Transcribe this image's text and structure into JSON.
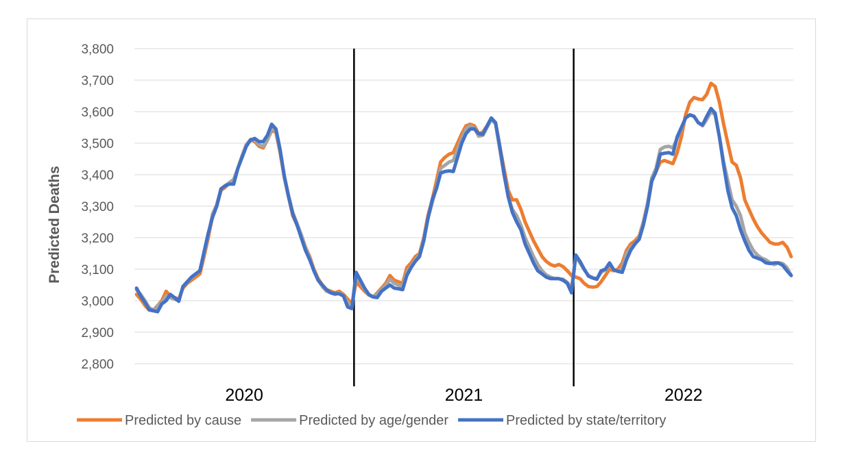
{
  "chart_data": {
    "type": "line",
    "title": "",
    "xlabel": "",
    "ylabel": "Predicted Deaths",
    "ylim": [
      2800,
      3800
    ],
    "y_ticks": [
      "2,800",
      "2,900",
      "3,000",
      "3,100",
      "3,200",
      "3,300",
      "3,400",
      "3,500",
      "3,600",
      "3,700",
      "3,800"
    ],
    "y_tick_values": [
      2800,
      2900,
      3000,
      3100,
      3200,
      3300,
      3400,
      3500,
      3600,
      3700,
      3800
    ],
    "grid": "horizontal",
    "legend_position": "bottom",
    "x_unit": "week",
    "years": [
      {
        "label": "2020",
        "weeks": 52
      },
      {
        "label": "2021",
        "weeks": 52
      },
      {
        "label": "2022",
        "weeks": 52
      }
    ],
    "series": [
      {
        "name": "Predicted by cause",
        "color": "#ED7D31",
        "values": [
          3020,
          3005,
          2985,
          2970,
          2968,
          2985,
          3000,
          3030,
          3015,
          3010,
          3005,
          3040,
          3055,
          3065,
          3075,
          3085,
          3140,
          3200,
          3270,
          3300,
          3350,
          3360,
          3375,
          3380,
          3420,
          3460,
          3495,
          3510,
          3505,
          3490,
          3485,
          3510,
          3540,
          3535,
          3470,
          3390,
          3330,
          3270,
          3240,
          3210,
          3170,
          3140,
          3100,
          3070,
          3050,
          3035,
          3030,
          3025,
          3030,
          3020,
          3005,
          2990,
          3060,
          3045,
          3030,
          3018,
          3012,
          3025,
          3040,
          3055,
          3080,
          3065,
          3060,
          3055,
          3105,
          3120,
          3140,
          3150,
          3200,
          3270,
          3320,
          3380,
          3440,
          3455,
          3465,
          3470,
          3500,
          3530,
          3555,
          3560,
          3555,
          3530,
          3535,
          3555,
          3575,
          3565,
          3490,
          3420,
          3350,
          3320,
          3320,
          3290,
          3250,
          3220,
          3190,
          3165,
          3140,
          3125,
          3115,
          3110,
          3115,
          3108,
          3095,
          3080,
          3075,
          3070,
          3055,
          3045,
          3043,
          3045,
          3060,
          3080,
          3100,
          3095,
          3100,
          3120,
          3160,
          3180,
          3190,
          3205,
          3250,
          3310,
          3380,
          3410,
          3440,
          3445,
          3440,
          3435,
          3470,
          3520,
          3590,
          3630,
          3645,
          3640,
          3638,
          3655,
          3690,
          3680,
          3630,
          3560,
          3500,
          3440,
          3430,
          3390,
          3320,
          3290,
          3260,
          3235,
          3215,
          3200,
          3185,
          3180,
          3180,
          3185,
          3170,
          3140
        ]
      },
      {
        "name": "Predicted by age/gender",
        "color": "#A5A5A5",
        "values": [
          3035,
          3020,
          3000,
          2978,
          2970,
          2985,
          2995,
          3015,
          3010,
          3005,
          3000,
          3045,
          3060,
          3072,
          3083,
          3095,
          3150,
          3210,
          3275,
          3305,
          3355,
          3365,
          3375,
          3385,
          3420,
          3460,
          3495,
          3512,
          3510,
          3495,
          3490,
          3510,
          3545,
          3540,
          3475,
          3395,
          3335,
          3280,
          3245,
          3210,
          3168,
          3135,
          3095,
          3065,
          3045,
          3030,
          3025,
          3020,
          3025,
          3015,
          2995,
          2980,
          3080,
          3060,
          3035,
          3018,
          3012,
          3022,
          3035,
          3048,
          3068,
          3055,
          3050,
          3045,
          3090,
          3110,
          3130,
          3145,
          3195,
          3262,
          3310,
          3360,
          3420,
          3430,
          3440,
          3445,
          3480,
          3515,
          3545,
          3555,
          3548,
          3522,
          3525,
          3550,
          3575,
          3562,
          3480,
          3400,
          3330,
          3290,
          3270,
          3240,
          3200,
          3170,
          3140,
          3115,
          3095,
          3082,
          3075,
          3070,
          3070,
          3068,
          3058,
          3040,
          3140,
          3120,
          3098,
          3080,
          3073,
          3070,
          3090,
          3098,
          3115,
          3098,
          3093,
          3105,
          3150,
          3170,
          3180,
          3200,
          3250,
          3310,
          3390,
          3420,
          3480,
          3488,
          3490,
          3485,
          3515,
          3545,
          3580,
          3590,
          3585,
          3565,
          3555,
          3575,
          3600,
          3590,
          3520,
          3440,
          3380,
          3320,
          3300,
          3270,
          3215,
          3185,
          3160,
          3145,
          3135,
          3130,
          3120,
          3115,
          3120,
          3118,
          3105,
          3080
        ]
      },
      {
        "name": "Predicted by state/territory",
        "color": "#4472C4",
        "values": [
          3040,
          3015,
          2995,
          2972,
          2968,
          2965,
          2990,
          3000,
          3020,
          3010,
          2998,
          3045,
          3060,
          3075,
          3085,
          3095,
          3155,
          3215,
          3265,
          3300,
          3355,
          3365,
          3370,
          3370,
          3420,
          3455,
          3490,
          3510,
          3515,
          3505,
          3505,
          3525,
          3560,
          3545,
          3480,
          3395,
          3330,
          3275,
          3240,
          3200,
          3160,
          3130,
          3095,
          3065,
          3050,
          3035,
          3025,
          3022,
          3022,
          3015,
          2980,
          2975,
          3090,
          3065,
          3040,
          3020,
          3012,
          3010,
          3030,
          3040,
          3050,
          3040,
          3038,
          3035,
          3080,
          3105,
          3125,
          3140,
          3190,
          3260,
          3320,
          3355,
          3405,
          3410,
          3412,
          3410,
          3455,
          3500,
          3530,
          3545,
          3545,
          3530,
          3528,
          3555,
          3580,
          3565,
          3490,
          3405,
          3330,
          3280,
          3250,
          3225,
          3180,
          3150,
          3120,
          3095,
          3085,
          3075,
          3070,
          3070,
          3070,
          3065,
          3055,
          3025,
          3145,
          3125,
          3100,
          3078,
          3072,
          3068,
          3095,
          3100,
          3120,
          3098,
          3093,
          3090,
          3130,
          3160,
          3180,
          3195,
          3240,
          3300,
          3380,
          3410,
          3465,
          3468,
          3470,
          3465,
          3520,
          3550,
          3580,
          3590,
          3585,
          3565,
          3558,
          3585,
          3610,
          3595,
          3520,
          3430,
          3350,
          3295,
          3270,
          3225,
          3190,
          3160,
          3140,
          3135,
          3130,
          3120,
          3118,
          3120,
          3120,
          3112,
          3095,
          3080
        ]
      }
    ]
  }
}
